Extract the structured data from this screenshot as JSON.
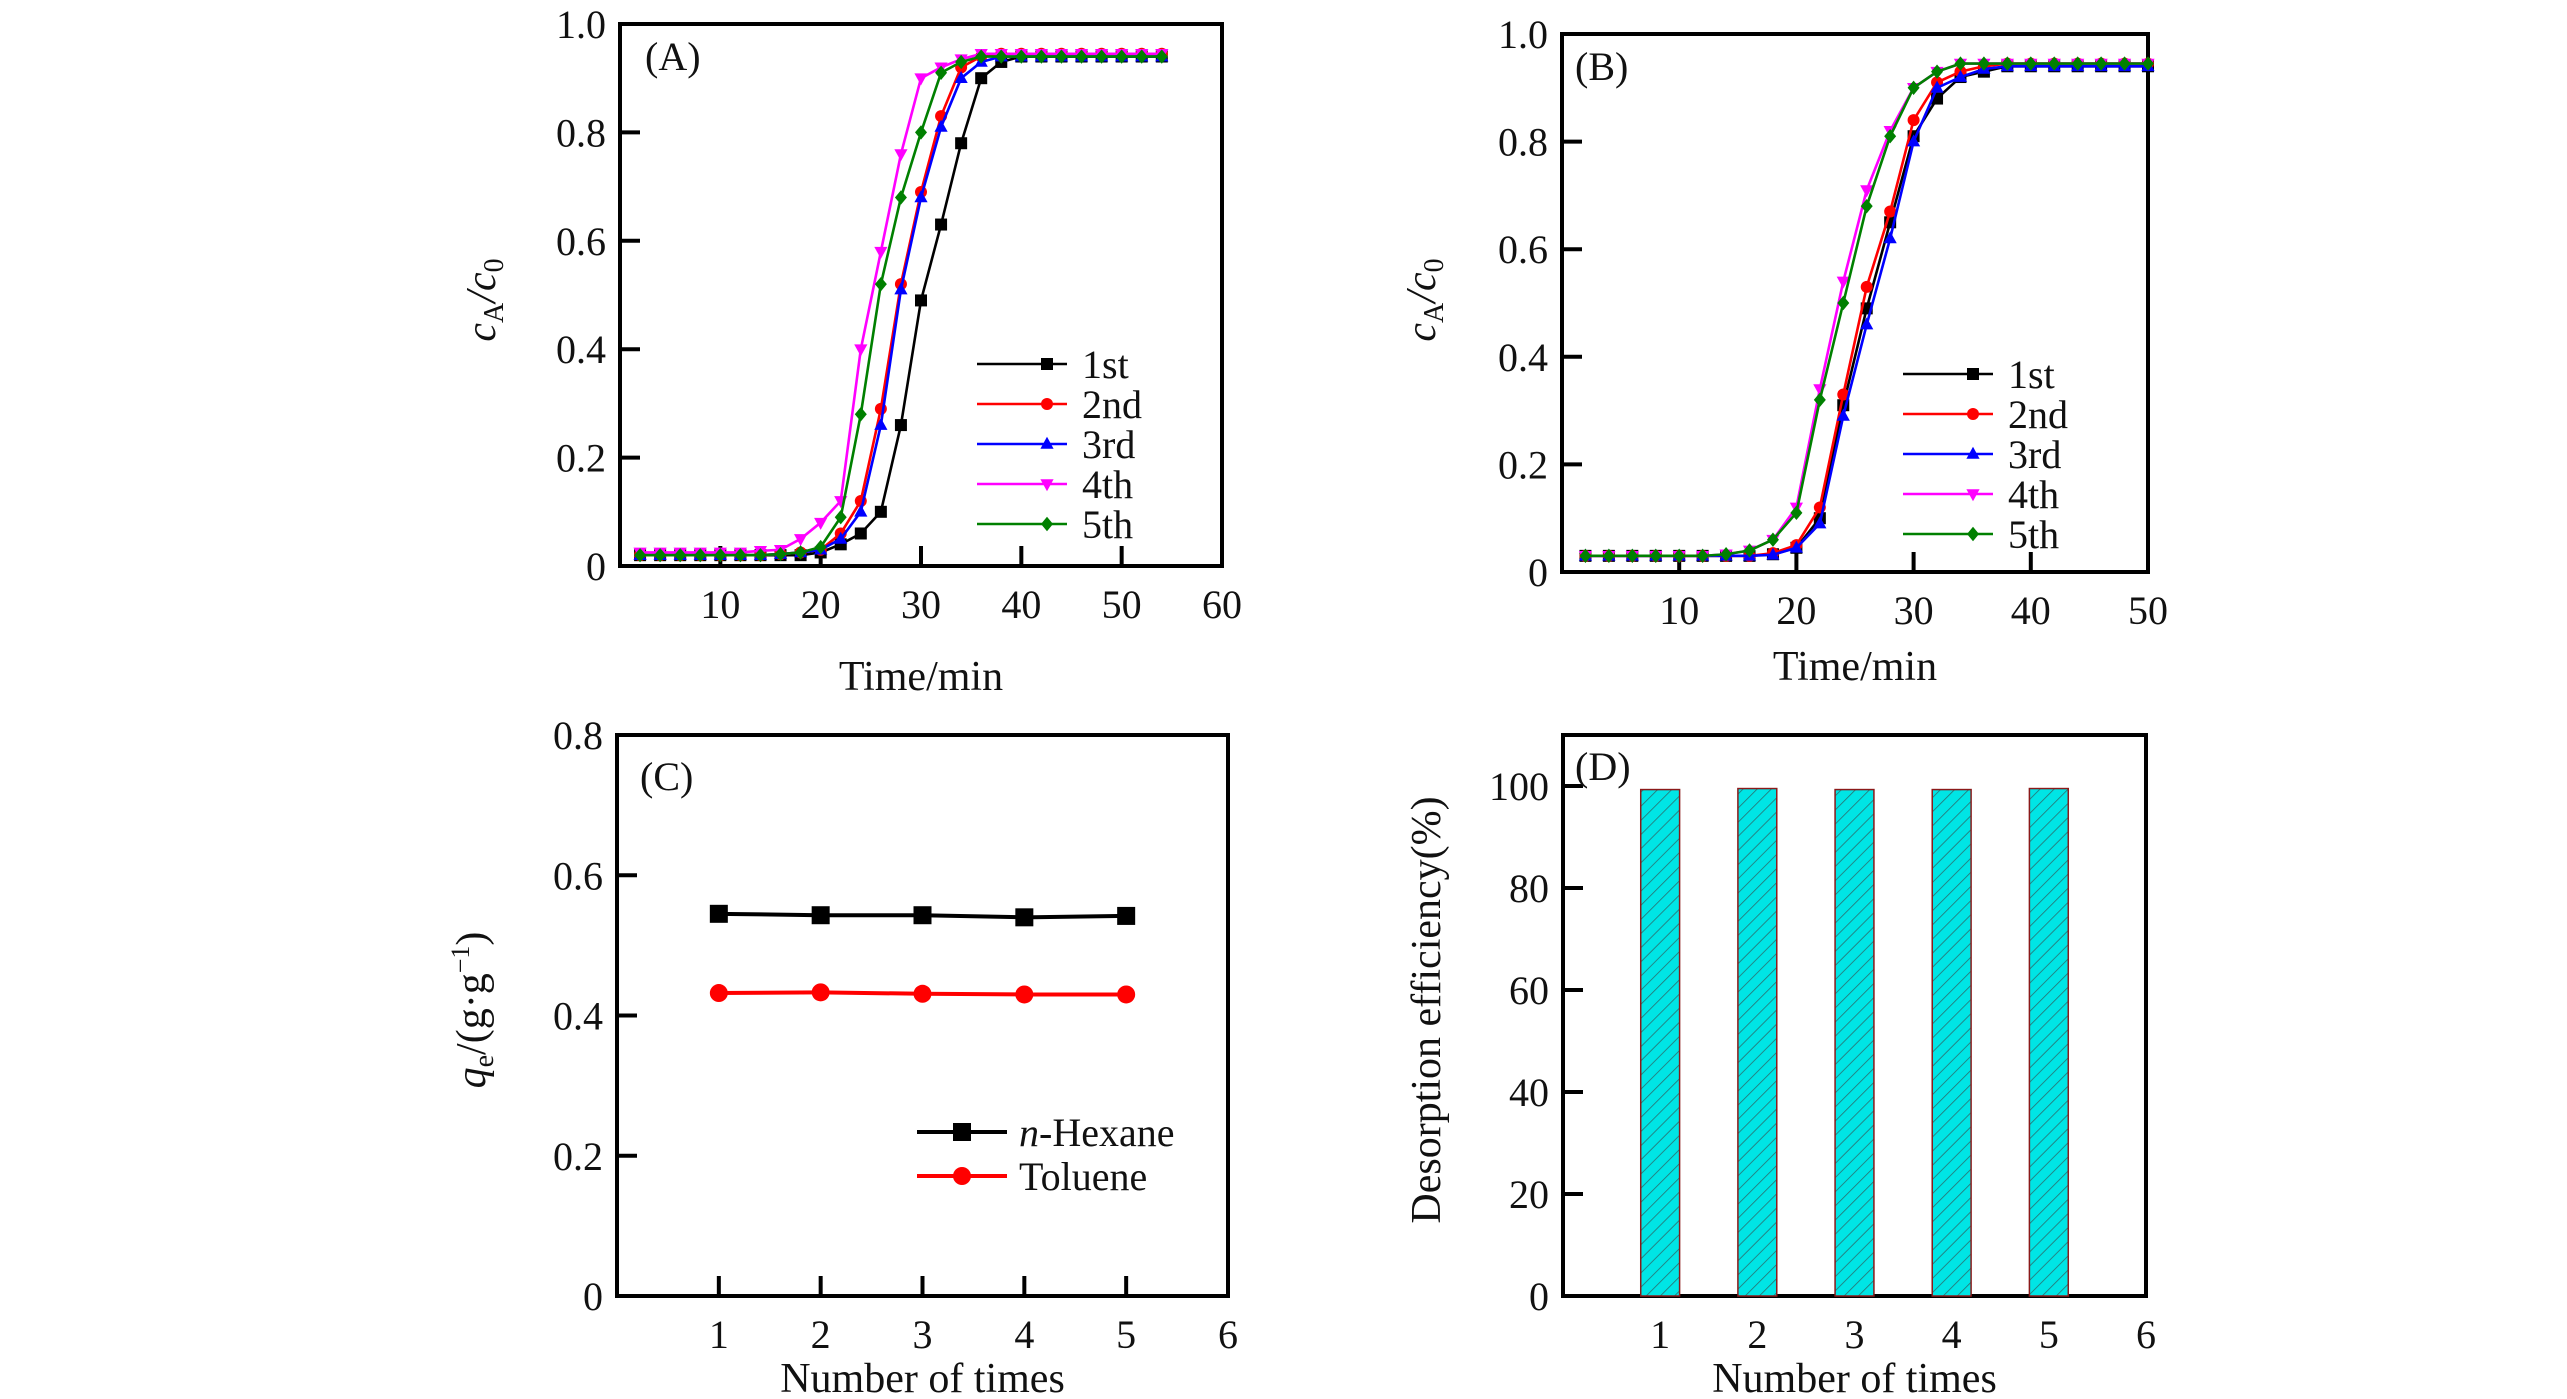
{
  "chart_data": [
    {
      "panel": "A",
      "type": "line",
      "panel_label": "(A)",
      "xlabel": "Time/min",
      "ylabel_main": "c",
      "ylabel_sub1": "A",
      "ylabel_mid": "/c",
      "ylabel_sub2": "0",
      "xlim": [
        0,
        60
      ],
      "ylim": [
        0,
        1.0
      ],
      "xticks": [
        10,
        20,
        30,
        40,
        50,
        60
      ],
      "xtick_labels": [
        "10",
        "20",
        "30",
        "40",
        "50",
        "60"
      ],
      "yticks": [
        0,
        0.2,
        0.4,
        0.6,
        0.8,
        1.0
      ],
      "ytick_labels": [
        "0",
        "0.2",
        "0.4",
        "0.6",
        "0.8",
        "1.0"
      ],
      "legend_position": "center-right",
      "x": [
        2,
        4,
        6,
        8,
        10,
        12,
        14,
        16,
        18,
        20,
        22,
        24,
        26,
        28,
        30,
        32,
        34,
        36,
        38,
        40,
        42,
        44,
        46,
        48,
        50,
        52,
        54
      ],
      "series": [
        {
          "name": "1st",
          "color": "#000000",
          "marker": "square",
          "values": [
            0.02,
            0.02,
            0.02,
            0.02,
            0.02,
            0.02,
            0.02,
            0.02,
            0.02,
            0.025,
            0.04,
            0.06,
            0.1,
            0.26,
            0.49,
            0.63,
            0.78,
            0.9,
            0.93,
            0.94,
            0.94,
            0.94,
            0.94,
            0.94,
            0.94,
            0.94,
            0.94
          ]
        },
        {
          "name": "2nd",
          "color": "#ff0000",
          "marker": "circle",
          "values": [
            0.02,
            0.02,
            0.02,
            0.02,
            0.02,
            0.02,
            0.02,
            0.022,
            0.025,
            0.03,
            0.06,
            0.12,
            0.29,
            0.52,
            0.69,
            0.83,
            0.92,
            0.94,
            0.945,
            0.945,
            0.945,
            0.945,
            0.945,
            0.945,
            0.945,
            0.945,
            0.945
          ]
        },
        {
          "name": "3rd",
          "color": "#0000ff",
          "marker": "triangle-up",
          "values": [
            0.02,
            0.02,
            0.02,
            0.02,
            0.02,
            0.02,
            0.02,
            0.022,
            0.025,
            0.03,
            0.05,
            0.1,
            0.26,
            0.51,
            0.68,
            0.81,
            0.9,
            0.93,
            0.94,
            0.94,
            0.94,
            0.94,
            0.94,
            0.94,
            0.94,
            0.94,
            0.94
          ]
        },
        {
          "name": "4th",
          "color": "#ff00ff",
          "marker": "triangle-down",
          "values": [
            0.025,
            0.025,
            0.025,
            0.025,
            0.025,
            0.025,
            0.028,
            0.03,
            0.05,
            0.08,
            0.12,
            0.4,
            0.58,
            0.76,
            0.9,
            0.92,
            0.935,
            0.945,
            0.945,
            0.945,
            0.945,
            0.945,
            0.945,
            0.945,
            0.945,
            0.945,
            0.945
          ]
        },
        {
          "name": "5th",
          "color": "#008000",
          "marker": "diamond",
          "values": [
            0.02,
            0.02,
            0.02,
            0.02,
            0.02,
            0.02,
            0.02,
            0.022,
            0.025,
            0.035,
            0.09,
            0.28,
            0.52,
            0.68,
            0.8,
            0.91,
            0.93,
            0.94,
            0.94,
            0.94,
            0.94,
            0.94,
            0.94,
            0.94,
            0.94,
            0.94,
            0.94
          ]
        }
      ]
    },
    {
      "panel": "B",
      "type": "line",
      "panel_label": "(B)",
      "xlabel": "Time/min",
      "ylabel_main": "c",
      "ylabel_sub1": "A",
      "ylabel_mid": "/c",
      "ylabel_sub2": "0",
      "xlim": [
        0,
        50
      ],
      "ylim": [
        0,
        1.0
      ],
      "xticks": [
        10,
        20,
        30,
        40,
        50
      ],
      "xtick_labels": [
        "10",
        "20",
        "30",
        "40",
        "50"
      ],
      "yticks": [
        0,
        0.2,
        0.4,
        0.6,
        0.8,
        1.0
      ],
      "ytick_labels": [
        "0",
        "0.2",
        "0.4",
        "0.6",
        "0.8",
        "1.0"
      ],
      "legend_position": "center-right",
      "x": [
        2,
        4,
        6,
        8,
        10,
        12,
        14,
        16,
        18,
        20,
        22,
        24,
        26,
        28,
        30,
        32,
        34,
        36,
        38,
        40,
        42,
        44,
        46,
        48,
        50
      ],
      "series": [
        {
          "name": "1st",
          "color": "#000000",
          "marker": "square",
          "values": [
            0.03,
            0.03,
            0.03,
            0.03,
            0.03,
            0.03,
            0.03,
            0.03,
            0.033,
            0.045,
            0.1,
            0.31,
            0.49,
            0.65,
            0.81,
            0.88,
            0.92,
            0.93,
            0.94,
            0.94,
            0.94,
            0.94,
            0.94,
            0.94,
            0.94
          ]
        },
        {
          "name": "2nd",
          "color": "#ff0000",
          "marker": "circle",
          "values": [
            0.03,
            0.03,
            0.03,
            0.03,
            0.03,
            0.03,
            0.03,
            0.03,
            0.035,
            0.05,
            0.12,
            0.33,
            0.53,
            0.67,
            0.84,
            0.91,
            0.93,
            0.94,
            0.945,
            0.945,
            0.945,
            0.945,
            0.945,
            0.945,
            0.945
          ]
        },
        {
          "name": "3rd",
          "color": "#0000ff",
          "marker": "triangle-up",
          "values": [
            0.03,
            0.03,
            0.03,
            0.03,
            0.03,
            0.03,
            0.03,
            0.03,
            0.032,
            0.045,
            0.09,
            0.29,
            0.46,
            0.62,
            0.8,
            0.9,
            0.92,
            0.935,
            0.94,
            0.94,
            0.94,
            0.94,
            0.94,
            0.94,
            0.94
          ]
        },
        {
          "name": "4th",
          "color": "#ff00ff",
          "marker": "triangle-down",
          "values": [
            0.03,
            0.03,
            0.03,
            0.03,
            0.03,
            0.03,
            0.033,
            0.04,
            0.06,
            0.12,
            0.34,
            0.54,
            0.71,
            0.82,
            0.9,
            0.93,
            0.945,
            0.945,
            0.945,
            0.945,
            0.945,
            0.945,
            0.945,
            0.945,
            0.945
          ]
        },
        {
          "name": "5th",
          "color": "#008000",
          "marker": "diamond",
          "values": [
            0.03,
            0.03,
            0.03,
            0.03,
            0.03,
            0.03,
            0.033,
            0.04,
            0.06,
            0.11,
            0.32,
            0.5,
            0.68,
            0.81,
            0.9,
            0.93,
            0.945,
            0.945,
            0.945,
            0.945,
            0.945,
            0.945,
            0.945,
            0.945,
            0.945
          ]
        }
      ]
    },
    {
      "panel": "C",
      "type": "line",
      "panel_label": "(C)",
      "xlabel": "Number of times",
      "ylabel_main": "q",
      "ylabel_sub1": "e",
      "ylabel_rest": "/(g·g",
      "ylabel_sup": "−1",
      "ylabel_close": ")",
      "xlim": [
        0,
        6
      ],
      "ylim": [
        0,
        0.8
      ],
      "xticks": [
        1,
        2,
        3,
        4,
        5,
        6
      ],
      "xtick_labels": [
        "1",
        "2",
        "3",
        "4",
        "5",
        "6"
      ],
      "yticks": [
        0,
        0.2,
        0.4,
        0.6,
        0.8
      ],
      "ytick_labels": [
        "0",
        "0.2",
        "0.4",
        "0.6",
        "0.8"
      ],
      "legend_position": "lower-right",
      "x": [
        1,
        2,
        3,
        4,
        5
      ],
      "series": [
        {
          "name": "n-Hexane",
          "name_italic": "n",
          "name_rest": "-Hexane",
          "color": "#000000",
          "marker": "square",
          "values": [
            0.545,
            0.543,
            0.543,
            0.54,
            0.542
          ]
        },
        {
          "name": "Toluene",
          "name_italic": "",
          "name_rest": "Toluene",
          "color": "#ff0000",
          "marker": "circle",
          "values": [
            0.432,
            0.433,
            0.431,
            0.43,
            0.43
          ]
        }
      ]
    },
    {
      "panel": "D",
      "type": "bar",
      "panel_label": "(D)",
      "xlabel": "Number of times",
      "ylabel": "Desorption efficiency(%)",
      "xlim": [
        0,
        6
      ],
      "ylim": [
        0,
        110
      ],
      "xticks": [
        1,
        2,
        3,
        4,
        5,
        6
      ],
      "xtick_labels": [
        "1",
        "2",
        "3",
        "4",
        "5",
        "6"
      ],
      "yticks": [
        0,
        20,
        40,
        60,
        80,
        100
      ],
      "ytick_labels": [
        "0",
        "20",
        "40",
        "60",
        "80",
        "100"
      ],
      "categories": [
        1,
        2,
        3,
        4,
        5
      ],
      "values": [
        99.3,
        99.5,
        99.3,
        99.3,
        99.5
      ],
      "bar_color": "#00e5e5",
      "bar_hatch": "diagonal"
    }
  ]
}
